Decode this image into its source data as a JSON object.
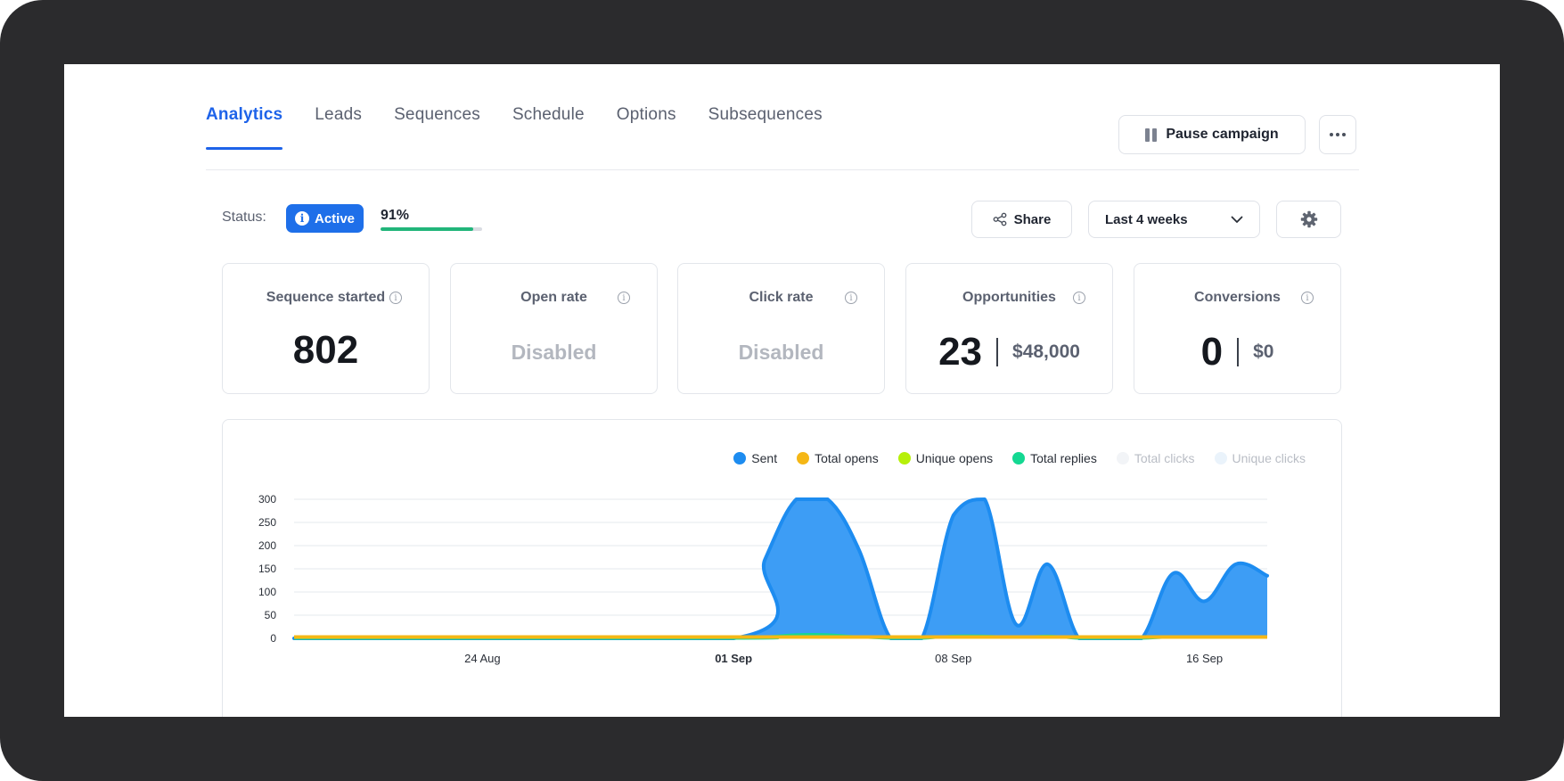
{
  "tabs": [
    {
      "label": "Analytics",
      "active": true
    },
    {
      "label": "Leads",
      "active": false
    },
    {
      "label": "Sequences",
      "active": false
    },
    {
      "label": "Schedule",
      "active": false
    },
    {
      "label": "Options",
      "active": false
    },
    {
      "label": "Subsequences",
      "active": false
    }
  ],
  "header": {
    "pause_label": "Pause campaign",
    "more_icon": "more-horizontal-icon"
  },
  "status": {
    "label": "Status:",
    "badge": "Active",
    "progress_text": "91%",
    "progress_fraction": 0.91
  },
  "toolbar": {
    "share_label": "Share",
    "range_label": "Last 4 weeks",
    "settings_icon": "gear-icon"
  },
  "metrics": {
    "sequence_started": {
      "title": "Sequence started",
      "value": "802"
    },
    "open_rate": {
      "title": "Open rate",
      "value": "Disabled"
    },
    "click_rate": {
      "title": "Click rate",
      "value": "Disabled"
    },
    "opportunities": {
      "title": "Opportunities",
      "count": "23",
      "amount": "$48,000"
    },
    "conversions": {
      "title": "Conversions",
      "count": "0",
      "amount": "$0"
    }
  },
  "colors": {
    "accent": "#1e63e9",
    "sent": "#1d8cf0",
    "total_opens": "#f5b716",
    "unique_opens": "#b6f00a",
    "total_replies": "#14d892",
    "total_clicks": "#f2f4f7",
    "unique_clicks": "#eaf3fb",
    "progress": "#21b57a"
  },
  "chart_data": {
    "type": "area",
    "legend": [
      {
        "name": "Sent",
        "color": "#1d8cf0",
        "muted": false
      },
      {
        "name": "Total opens",
        "color": "#f5b716",
        "muted": false
      },
      {
        "name": "Unique opens",
        "color": "#b6f00a",
        "muted": false
      },
      {
        "name": "Total replies",
        "color": "#14d892",
        "muted": false
      },
      {
        "name": "Total clicks",
        "color": "#f2f4f7",
        "muted": true
      },
      {
        "name": "Unique clicks",
        "color": "#eaf3fb",
        "muted": true
      }
    ],
    "yticks": [
      "300",
      "250",
      "200",
      "150",
      "100",
      "50",
      "0"
    ],
    "ylim": [
      0,
      300
    ],
    "xticks": [
      {
        "label": "24 Aug",
        "day": 6,
        "bold": false
      },
      {
        "label": "01 Sep",
        "day": 14,
        "bold": true
      },
      {
        "label": "08 Sep",
        "day": 21,
        "bold": false
      },
      {
        "label": "16 Sep",
        "day": 29,
        "bold": false
      }
    ],
    "x_days": [
      0,
      14,
      15,
      16,
      17,
      18,
      19,
      20,
      21,
      22,
      23,
      24,
      25,
      26,
      27,
      28,
      29,
      30,
      31
    ],
    "series": [
      {
        "name": "Sent",
        "values": [
          0,
          0,
          170,
          300,
          300,
          190,
          0,
          0,
          265,
          300,
          30,
          160,
          0,
          0,
          0,
          140,
          80,
          160,
          135
        ]
      },
      {
        "name": "Total opens",
        "values": [
          3,
          3,
          3,
          3,
          3,
          3,
          3,
          3,
          3,
          3,
          3,
          3,
          3,
          3,
          3,
          3,
          3,
          3,
          3
        ]
      },
      {
        "name": "Total replies",
        "values": [
          0,
          0,
          3,
          8,
          8,
          3,
          0,
          0,
          5,
          5,
          2,
          5,
          0,
          0,
          0,
          3,
          3,
          3,
          3
        ]
      }
    ]
  }
}
